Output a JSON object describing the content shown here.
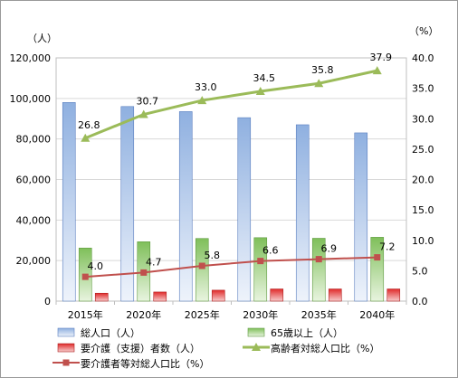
{
  "chart_data": {
    "type": "bar",
    "categories": [
      "2015年",
      "2020年",
      "2025年",
      "2030年",
      "2035年",
      "2040年"
    ],
    "y_left_unit": "（人）",
    "y_right_unit": "（%）",
    "y_left_ticks": [
      "0",
      "20,000",
      "40,000",
      "60,000",
      "80,000",
      "100,000",
      "120,000"
    ],
    "y_right_ticks": [
      "0.0",
      "5.0",
      "10.0",
      "15.0",
      "20.0",
      "25.0",
      "30.0",
      "35.0",
      "40.0"
    ],
    "ylim_left": [
      0,
      120000
    ],
    "ylim_right": [
      0,
      40
    ],
    "grid": true,
    "legend_position": "bottom",
    "series": [
      {
        "name": "総人口（人）",
        "kind": "bar",
        "axis": "left",
        "color": "#9cb9e4",
        "values": [
          98000,
          96000,
          93500,
          90500,
          87000,
          83000
        ]
      },
      {
        "name": "65歳以上（人）",
        "kind": "bar",
        "axis": "left",
        "color": "#8cc16a",
        "values": [
          26200,
          29300,
          30900,
          31300,
          31000,
          31500
        ]
      },
      {
        "name": "要介護（支援）者数（人）",
        "kind": "bar",
        "axis": "left",
        "color": "#e03030",
        "values": [
          3900,
          4500,
          5400,
          6000,
          6000,
          6000
        ]
      },
      {
        "name": "高齢者対総人口比（%）",
        "kind": "line",
        "axis": "right",
        "color": "#9bbb59",
        "marker": "triangle",
        "values": [
          26.8,
          30.7,
          33.0,
          34.5,
          35.8,
          37.9
        ],
        "labels": [
          "26.8",
          "30.7",
          "33.0",
          "34.5",
          "35.8",
          "37.9"
        ]
      },
      {
        "name": "要介護者等対総人口比（%）",
        "kind": "line",
        "axis": "right",
        "color": "#c0504d",
        "marker": "square",
        "values": [
          4.0,
          4.7,
          5.8,
          6.6,
          6.9,
          7.2
        ],
        "labels": [
          "4.0",
          "4.7",
          "5.8",
          "6.6",
          "6.9",
          "7.2"
        ]
      }
    ]
  }
}
